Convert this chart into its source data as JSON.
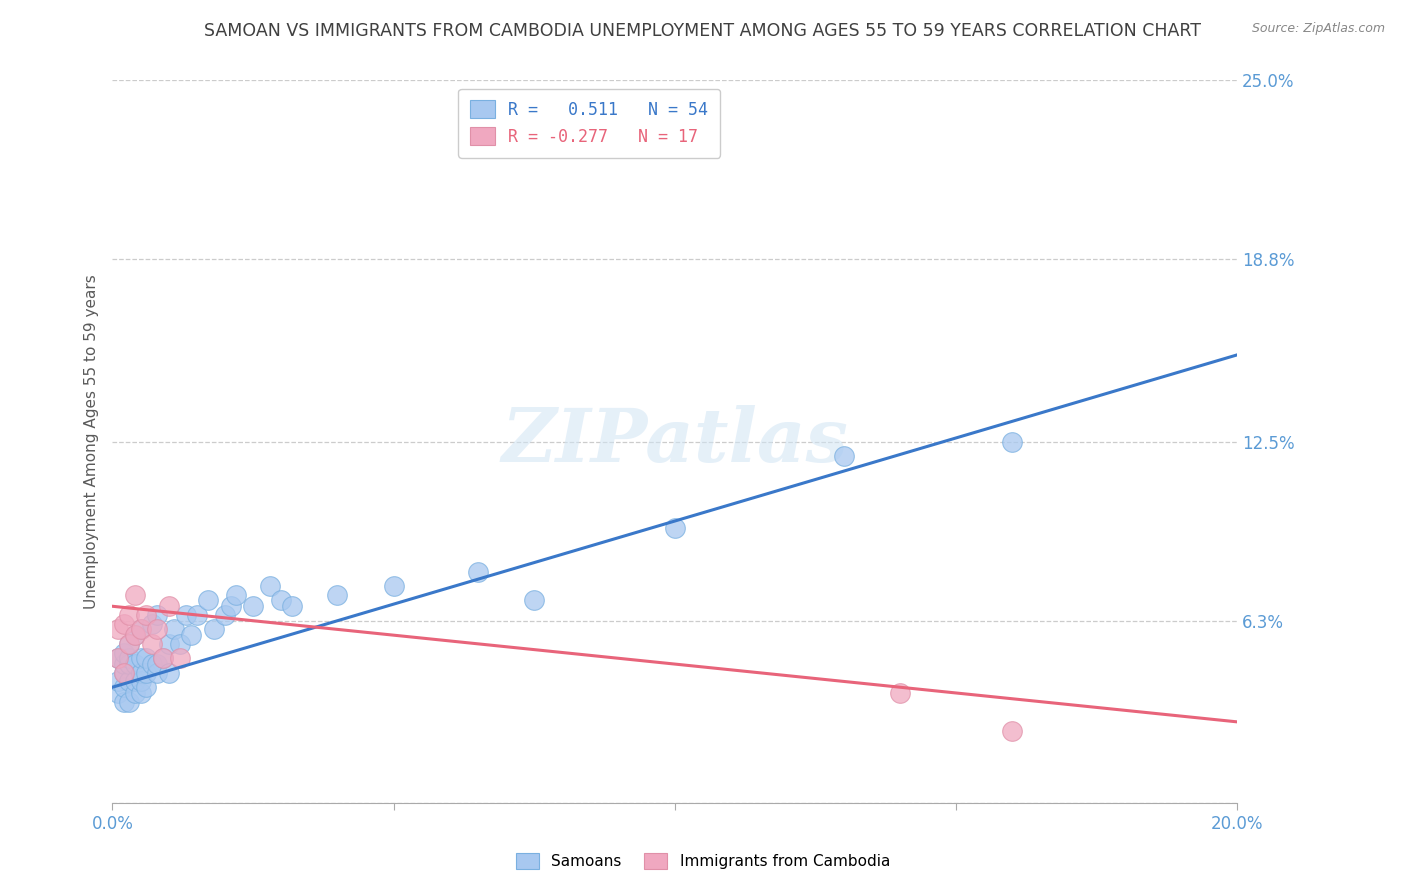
{
  "title": "SAMOAN VS IMMIGRANTS FROM CAMBODIA UNEMPLOYMENT AMONG AGES 55 TO 59 YEARS CORRELATION CHART",
  "source": "Source: ZipAtlas.com",
  "ylabel": "Unemployment Among Ages 55 to 59 years",
  "xlim": [
    0.0,
    0.2
  ],
  "ylim": [
    0.0,
    0.25
  ],
  "xticks": [
    0.0,
    0.05,
    0.1,
    0.15,
    0.2
  ],
  "xticklabels": [
    "0.0%",
    "",
    "",
    "",
    "20.0%"
  ],
  "ytick_positions": [
    0.0,
    0.063,
    0.125,
    0.188,
    0.25
  ],
  "ytick_labels": [
    "",
    "6.3%",
    "12.5%",
    "18.8%",
    "25.0%"
  ],
  "samoans_color": "#a8c8f0",
  "cambodia_color": "#f0a8c0",
  "blue_line_color": "#3a78c9",
  "pink_line_color": "#e8647a",
  "title_color": "#404040",
  "axis_label_color": "#5a5a5a",
  "tick_label_color": "#5b9bd5",
  "R_samoan": 0.511,
  "N_samoan": 54,
  "R_cambodia": -0.277,
  "N_cambodia": 17,
  "samoans_x": [
    0.001,
    0.001,
    0.001,
    0.002,
    0.002,
    0.002,
    0.002,
    0.002,
    0.003,
    0.003,
    0.003,
    0.003,
    0.003,
    0.004,
    0.004,
    0.004,
    0.004,
    0.005,
    0.005,
    0.005,
    0.005,
    0.005,
    0.006,
    0.006,
    0.006,
    0.007,
    0.007,
    0.008,
    0.008,
    0.008,
    0.009,
    0.01,
    0.01,
    0.011,
    0.012,
    0.013,
    0.014,
    0.015,
    0.017,
    0.018,
    0.02,
    0.021,
    0.022,
    0.025,
    0.028,
    0.03,
    0.032,
    0.04,
    0.05,
    0.065,
    0.075,
    0.1,
    0.13,
    0.16
  ],
  "samoans_y": [
    0.038,
    0.042,
    0.05,
    0.035,
    0.04,
    0.045,
    0.048,
    0.052,
    0.035,
    0.042,
    0.048,
    0.05,
    0.055,
    0.038,
    0.042,
    0.048,
    0.058,
    0.038,
    0.042,
    0.045,
    0.05,
    0.06,
    0.04,
    0.045,
    0.05,
    0.048,
    0.062,
    0.045,
    0.048,
    0.065,
    0.05,
    0.045,
    0.055,
    0.06,
    0.055,
    0.065,
    0.058,
    0.065,
    0.07,
    0.06,
    0.065,
    0.068,
    0.072,
    0.068,
    0.075,
    0.07,
    0.068,
    0.072,
    0.075,
    0.08,
    0.07,
    0.095,
    0.12,
    0.125
  ],
  "cambodia_x": [
    0.001,
    0.001,
    0.002,
    0.002,
    0.003,
    0.003,
    0.004,
    0.004,
    0.005,
    0.006,
    0.007,
    0.008,
    0.009,
    0.01,
    0.012,
    0.14,
    0.16
  ],
  "cambodia_y": [
    0.05,
    0.06,
    0.045,
    0.062,
    0.055,
    0.065,
    0.058,
    0.072,
    0.06,
    0.065,
    0.055,
    0.06,
    0.05,
    0.068,
    0.05,
    0.038,
    0.025
  ],
  "blue_trend_x": [
    0.0,
    0.2
  ],
  "blue_trend_y": [
    0.04,
    0.155
  ],
  "pink_trend_x": [
    0.0,
    0.2
  ],
  "pink_trend_y": [
    0.068,
    0.028
  ]
}
